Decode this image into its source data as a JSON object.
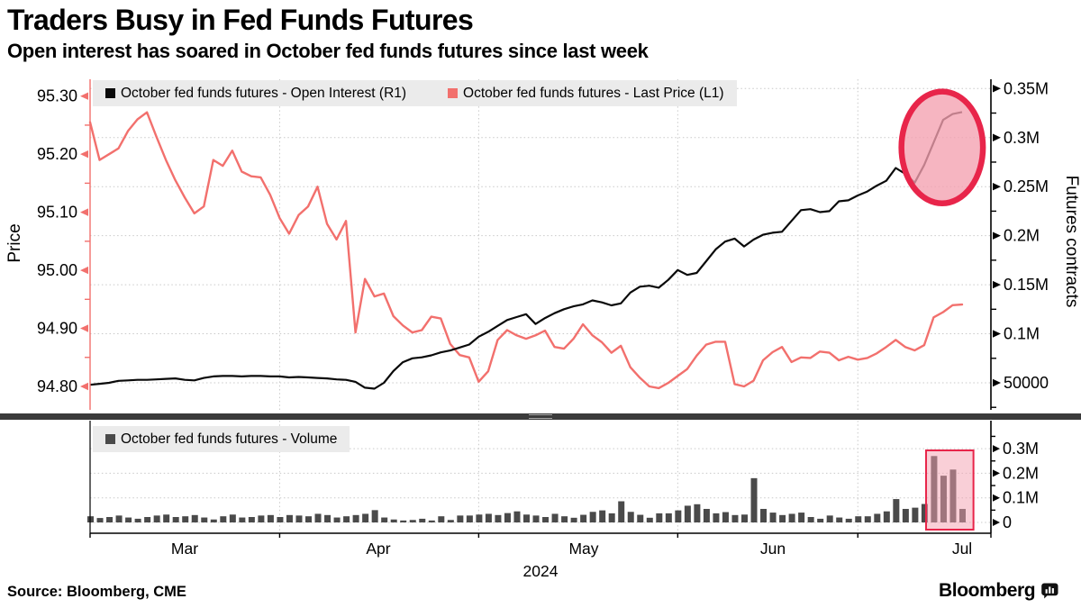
{
  "header": {
    "title": "Traders Busy in Fed Funds Futures",
    "subtitle": "Open interest has soared in October fed funds futures since last week"
  },
  "footer": {
    "source": "Source: Bloomberg, CME",
    "logo_text": "Bloomberg"
  },
  "colors": {
    "open_interest_line": "#0a0a0a",
    "last_price_line": "#f2706d",
    "volume_bar": "#4a4a4a",
    "highlight_stroke": "#e8254a",
    "highlight_fill": "#f3a0b0",
    "grid": "#c9c9c9",
    "legend_bg": "#ebebeb",
    "divider": "#3b3b3b"
  },
  "chart_data": [
    {
      "type": "line",
      "panel": "top",
      "legend": [
        "October fed funds futures - Open Interest (R1)",
        "October fed funds futures - Last Price (L1)"
      ],
      "left_axis": {
        "label": "Price",
        "ticks": [
          {
            "label": "95.30",
            "v": 95.3
          },
          {
            "label": "95.20",
            "v": 95.2
          },
          {
            "label": "95.10",
            "v": 95.1
          },
          {
            "label": "95.00",
            "v": 95.0
          },
          {
            "label": "94.90",
            "v": 94.9
          },
          {
            "label": "94.80",
            "v": 94.8
          }
        ]
      },
      "right_axis": {
        "label": "Futures contracts",
        "ticks": [
          {
            "label": "0.35M",
            "v": 350000
          },
          {
            "label": "0.3M",
            "v": 300000
          },
          {
            "label": "0.25M",
            "v": 250000
          },
          {
            "label": "0.2M",
            "v": 200000
          },
          {
            "label": "0.15M",
            "v": 150000
          },
          {
            "label": "0.1M",
            "v": 100000
          },
          {
            "label": "50000",
            "v": 50000
          }
        ]
      },
      "series": [
        {
          "name": "October fed funds futures - Open Interest (R1)",
          "axis": "R1",
          "color": "#0a0a0a",
          "values": [
            48000,
            49000,
            50000,
            52000,
            52500,
            53000,
            53000,
            53500,
            54000,
            54500,
            53000,
            52500,
            55000,
            56500,
            57000,
            57000,
            56500,
            57000,
            57000,
            56500,
            56500,
            55500,
            56000,
            55500,
            55000,
            54500,
            53500,
            53000,
            51000,
            45000,
            44000,
            50000,
            62000,
            71000,
            75000,
            76000,
            78000,
            81000,
            83000,
            86000,
            89000,
            97000,
            102000,
            108000,
            114000,
            117000,
            120000,
            110000,
            116000,
            121000,
            125000,
            128000,
            130000,
            134000,
            132000,
            129000,
            131000,
            142000,
            148000,
            149000,
            147000,
            155000,
            165000,
            160000,
            162000,
            174000,
            186000,
            194000,
            197000,
            189000,
            196000,
            201000,
            203000,
            204000,
            215000,
            226000,
            227000,
            224000,
            225000,
            235000,
            236000,
            241000,
            245000,
            251000,
            256000,
            269000,
            263000,
            254000,
            272000,
            295000,
            318000,
            324000,
            326000
          ]
        },
        {
          "name": "October fed funds futures - Last Price (L1)",
          "axis": "L1",
          "color": "#f2706d",
          "values": [
            95.255,
            95.19,
            95.2,
            95.21,
            95.24,
            95.26,
            95.272,
            95.23,
            95.19,
            95.155,
            95.125,
            95.098,
            95.11,
            95.19,
            95.18,
            95.206,
            95.17,
            95.162,
            95.16,
            95.13,
            95.09,
            95.063,
            95.095,
            95.11,
            95.144,
            95.08,
            95.053,
            95.085,
            94.893,
            94.985,
            94.955,
            94.96,
            94.921,
            94.905,
            94.893,
            94.897,
            94.92,
            94.917,
            94.873,
            94.854,
            94.85,
            94.808,
            94.826,
            94.88,
            94.897,
            94.888,
            94.882,
            94.888,
            94.896,
            94.868,
            94.865,
            94.882,
            94.907,
            94.888,
            94.876,
            94.858,
            94.87,
            94.833,
            94.815,
            94.8,
            94.797,
            94.806,
            94.818,
            94.83,
            94.853,
            94.872,
            94.877,
            94.877,
            94.804,
            94.8,
            94.81,
            94.845,
            94.859,
            94.868,
            94.842,
            94.85,
            94.849,
            94.86,
            94.858,
            94.845,
            94.851,
            94.846,
            94.849,
            94.857,
            94.868,
            94.88,
            94.868,
            94.862,
            94.871,
            94.919,
            94.928,
            94.94,
            94.941
          ]
        }
      ],
      "annotation_ellipse": {
        "center_idx": 89.9,
        "center_oi": 290000,
        "rx_idx": 4.3,
        "ry_oi": 57000
      }
    },
    {
      "type": "bar",
      "panel": "bottom",
      "legend": [
        "October fed funds futures - Volume"
      ],
      "right_axis": {
        "ticks": [
          {
            "label": "0.3M",
            "v": 300000
          },
          {
            "label": "0.2M",
            "v": 200000
          },
          {
            "label": "0.1M",
            "v": 100000
          },
          {
            "label": "0",
            "v": 0
          }
        ]
      },
      "series": [
        {
          "name": "October fed funds futures - Volume",
          "color": "#4a4a4a",
          "values": [
            25000,
            18000,
            22000,
            28000,
            20000,
            15000,
            22000,
            28000,
            32000,
            22000,
            25000,
            30000,
            20000,
            12000,
            25000,
            32000,
            20000,
            22000,
            28000,
            30000,
            22000,
            30000,
            28000,
            25000,
            35000,
            30000,
            20000,
            25000,
            30000,
            35000,
            50000,
            20000,
            12000,
            8000,
            10000,
            15000,
            8000,
            25000,
            10000,
            28000,
            28000,
            32000,
            35000,
            30000,
            38000,
            45000,
            32000,
            28000,
            22000,
            35000,
            25000,
            19000,
            31000,
            43000,
            49000,
            37000,
            86000,
            43000,
            31000,
            19000,
            37000,
            37000,
            49000,
            68000,
            74000,
            55000,
            37000,
            42000,
            30000,
            32000,
            180000,
            55000,
            40000,
            30000,
            35000,
            40000,
            22000,
            15000,
            28000,
            20000,
            15000,
            25000,
            25000,
            35000,
            45000,
            95000,
            55000,
            60000,
            75000,
            270000,
            190000,
            215000,
            55000
          ]
        }
      ],
      "annotation_rect": {
        "from_idx": 88.2,
        "to_idx": 93.2,
        "top_v": 293000
      }
    }
  ],
  "x_axis": {
    "months": [
      {
        "label": "Mar",
        "idx": 9.98
      },
      {
        "label": "Apr",
        "idx": 30.41
      },
      {
        "label": "May",
        "idx": 52.08
      },
      {
        "label": "Jun",
        "idx": 72.04
      },
      {
        "label": "Jul",
        "idx": 92.0
      }
    ],
    "year": "2024",
    "boundaries_idx": [
      20,
      41,
      62,
      81
    ]
  }
}
